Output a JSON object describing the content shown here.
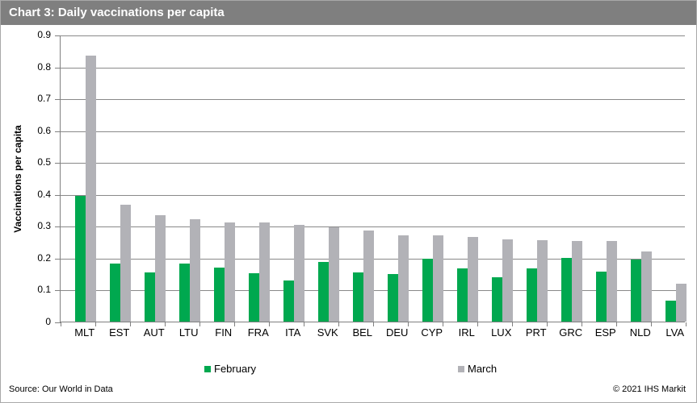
{
  "header": {
    "title": "Chart 3: Daily vaccinations per capita"
  },
  "footer": {
    "source": "Source: Our World in Data",
    "copyright": "© 2021 IHS Markit"
  },
  "colors": {
    "title_bar_bg": "#7f7f7f",
    "title_text": "#ffffff",
    "february_green": "#00a84f",
    "march_gray": "#b2b2b7",
    "gridline": "#898989",
    "axis": "#808080"
  },
  "chart_data": {
    "type": "bar",
    "title": "Chart 3: Daily vaccinations per capita",
    "xlabel": "",
    "ylabel": "Vaccinations per capita",
    "ylim": [
      0,
      0.9
    ],
    "ytick_step": 0.1,
    "yticks": [
      "0",
      "0.1",
      "0.2",
      "0.3",
      "0.4",
      "0.5",
      "0.6",
      "0.7",
      "0.8",
      "0.9"
    ],
    "grid": true,
    "legend_position": "bottom",
    "categories": [
      "MLT",
      "EST",
      "AUT",
      "LTU",
      "FIN",
      "FRA",
      "ITA",
      "SVK",
      "BEL",
      "DEU",
      "CYP",
      "IRL",
      "LUX",
      "PRT",
      "GRC",
      "ESP",
      "NLD",
      "LVA"
    ],
    "series": [
      {
        "name": "February",
        "color": "#00a84f",
        "values": [
          0.395,
          0.182,
          0.153,
          0.181,
          0.17,
          0.151,
          0.13,
          0.186,
          0.153,
          0.149,
          0.198,
          0.166,
          0.138,
          0.168,
          0.201,
          0.156,
          0.194,
          0.065
        ]
      },
      {
        "name": "March",
        "color": "#b2b2b7",
        "values": [
          0.835,
          0.366,
          0.333,
          0.32,
          0.31,
          0.31,
          0.303,
          0.297,
          0.285,
          0.27,
          0.27,
          0.266,
          0.259,
          0.256,
          0.252,
          0.252,
          0.221,
          0.12
        ]
      }
    ]
  }
}
